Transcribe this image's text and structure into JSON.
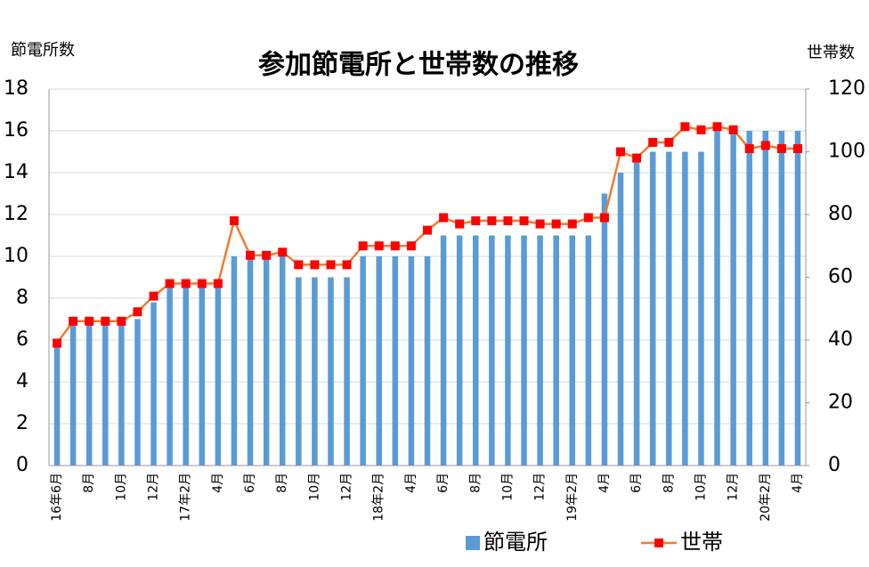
{
  "chart_data": {
    "type": "bar_line",
    "title": "参加節電所と世帯数の推移",
    "y_label": "節電所数",
    "y2_label": "世帯数",
    "categories": [
      "16年6月",
      null,
      "8月",
      null,
      "10月",
      null,
      "12月",
      null,
      "17年2月",
      null,
      "4月",
      null,
      "6月",
      null,
      "8月",
      null,
      "10月",
      null,
      "12月",
      null,
      "18年2月",
      null,
      "4月",
      null,
      "6月",
      null,
      "8月",
      null,
      "10月",
      null,
      "12月",
      null,
      "19年2月",
      null,
      "4月",
      null,
      "6月",
      null,
      "8月",
      null,
      "10月",
      null,
      "12月",
      null,
      "20年2月",
      null,
      "4月"
    ],
    "series": [
      {
        "name": "節電所",
        "type": "bar",
        "color": "#5b9bd5",
        "axis": "y",
        "values": [
          5.7,
          6.7,
          6.7,
          6.7,
          6.7,
          7,
          7.8,
          8.5,
          8.5,
          8.5,
          8.5,
          10,
          10,
          10,
          10,
          9,
          9,
          9,
          9,
          10,
          10,
          10,
          10,
          10,
          11,
          11,
          11,
          11,
          11,
          11,
          11,
          11,
          11,
          11,
          13,
          14,
          14.5,
          15,
          15,
          15,
          15,
          16,
          16,
          16,
          16,
          16,
          16
        ]
      },
      {
        "name": "世帯",
        "type": "line",
        "color": "#ed7d31",
        "marker_color": "#ff0000",
        "axis": "y2",
        "values": [
          39,
          46,
          46,
          46,
          46,
          49,
          54,
          58,
          58,
          58,
          58,
          78,
          67,
          67,
          68,
          64,
          64,
          64,
          64,
          70,
          70,
          70,
          70,
          75,
          79,
          77,
          78,
          78,
          78,
          78,
          77,
          77,
          77,
          79,
          79,
          100,
          98,
          103,
          103,
          108,
          107,
          108,
          107,
          101,
          102,
          101,
          101
        ]
      }
    ],
    "ylim": [
      0,
      18
    ],
    "yticks": [
      0,
      2,
      4,
      6,
      8,
      10,
      12,
      14,
      16,
      18
    ],
    "y2lim": [
      0,
      120
    ],
    "y2ticks": [
      0,
      20,
      40,
      60,
      80,
      100,
      120
    ],
    "grid": true
  }
}
